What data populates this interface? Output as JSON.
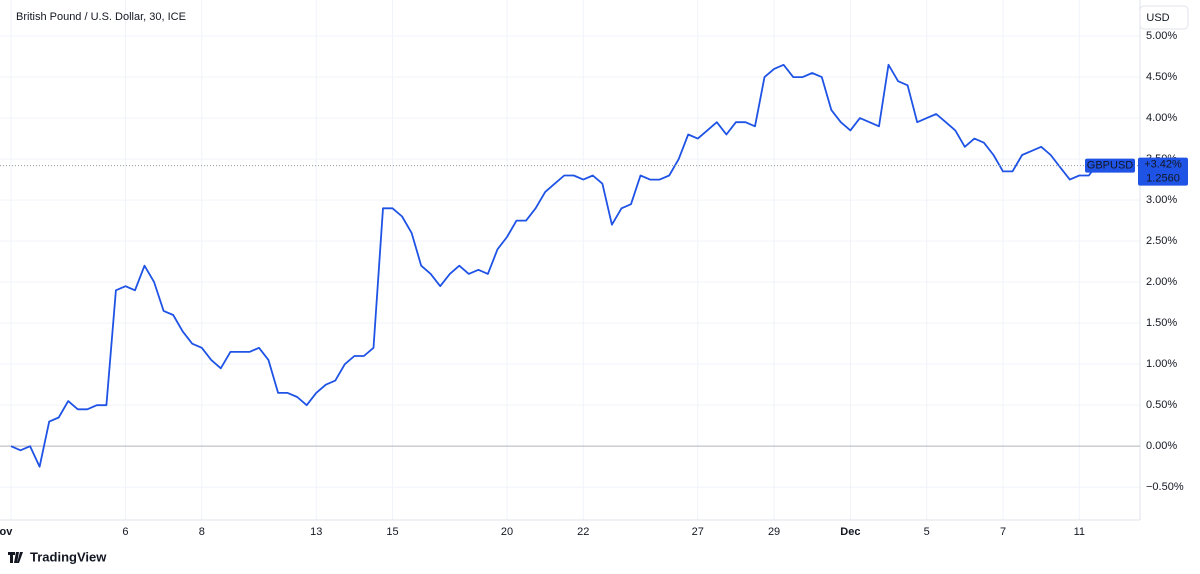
{
  "chart_data": {
    "type": "line",
    "title": "British Pound / U.S. Dollar, 30, ICE",
    "currency": "USD",
    "brand": "TradingView",
    "categories": [
      "Nov",
      null,
      null,
      null,
      null,
      null,
      null,
      null,
      null,
      null,
      null,
      null,
      "6",
      null,
      null,
      null,
      null,
      null,
      null,
      null,
      "8",
      null,
      null,
      null,
      null,
      null,
      null,
      null,
      null,
      null,
      null,
      null,
      "13",
      null,
      null,
      null,
      null,
      null,
      null,
      null,
      "15",
      null,
      null,
      null,
      null,
      null,
      null,
      null,
      null,
      null,
      null,
      null,
      "20",
      null,
      null,
      null,
      null,
      null,
      null,
      null,
      "22",
      null,
      null,
      null,
      null,
      null,
      null,
      null,
      null,
      null,
      null,
      null,
      "27",
      null,
      null,
      null,
      null,
      null,
      null,
      null,
      "29",
      null,
      null,
      null,
      null,
      null,
      null,
      null,
      "Dec",
      null,
      null,
      null,
      null,
      null,
      null,
      null,
      "5",
      null,
      null,
      null,
      null,
      null,
      null,
      null,
      "7",
      null,
      null,
      null,
      null,
      null,
      null,
      null,
      "11",
      null,
      null,
      null,
      null,
      null
    ],
    "series": [
      {
        "name": "GBPUSD",
        "color": "#1e53e5",
        "values": [
          0.0,
          -0.05,
          0.0,
          -0.25,
          0.3,
          0.35,
          0.55,
          0.45,
          0.45,
          0.5,
          0.5,
          1.9,
          1.95,
          1.9,
          2.2,
          2.0,
          1.65,
          1.6,
          1.4,
          1.25,
          1.2,
          1.05,
          0.95,
          1.15,
          1.15,
          1.15,
          1.2,
          1.05,
          0.65,
          0.65,
          0.6,
          0.5,
          0.65,
          0.75,
          0.8,
          1.0,
          1.1,
          1.1,
          1.2,
          2.9,
          2.9,
          2.8,
          2.6,
          2.2,
          2.1,
          1.95,
          2.1,
          2.2,
          2.1,
          2.15,
          2.1,
          2.4,
          2.55,
          2.75,
          2.75,
          2.9,
          3.1,
          3.2,
          3.3,
          3.3,
          3.25,
          3.3,
          3.2,
          2.7,
          2.9,
          2.95,
          3.3,
          3.25,
          3.25,
          3.3,
          3.5,
          3.8,
          3.75,
          3.85,
          3.95,
          3.8,
          3.95,
          3.95,
          3.9,
          4.5,
          4.6,
          4.65,
          4.5,
          4.5,
          4.55,
          4.5,
          4.1,
          3.95,
          3.85,
          4.0,
          3.95,
          3.9,
          4.65,
          4.45,
          4.4,
          3.95,
          4.0,
          4.05,
          3.95,
          3.85,
          3.65,
          3.75,
          3.7,
          3.55,
          3.35,
          3.35,
          3.55,
          3.6,
          3.65,
          3.55,
          3.4,
          3.25,
          3.3,
          3.3,
          3.45,
          3.45,
          3.4,
          3.42
        ]
      }
    ],
    "last_change": {
      "value": 3.42,
      "label": "+3.42%"
    },
    "last_price": "1.2560",
    "ylim": [
      -0.9,
      5.44
    ],
    "yticks": [
      {
        "value": -0.5,
        "label": "−0.50%"
      },
      {
        "value": 0,
        "label": "0.00%"
      },
      {
        "value": 0.5,
        "label": "0.50%"
      },
      {
        "value": 1,
        "label": "1.00%"
      },
      {
        "value": 1.5,
        "label": "1.50%"
      },
      {
        "value": 2,
        "label": "2.00%"
      },
      {
        "value": 2.5,
        "label": "2.50%"
      },
      {
        "value": 3,
        "label": "3.00%"
      },
      {
        "value": 3.5,
        "label": "3.50%"
      },
      {
        "value": 4,
        "label": "4.00%"
      },
      {
        "value": 4.5,
        "label": "4.50%"
      },
      {
        "value": 5,
        "label": "5.00%"
      }
    ],
    "grid": true
  }
}
